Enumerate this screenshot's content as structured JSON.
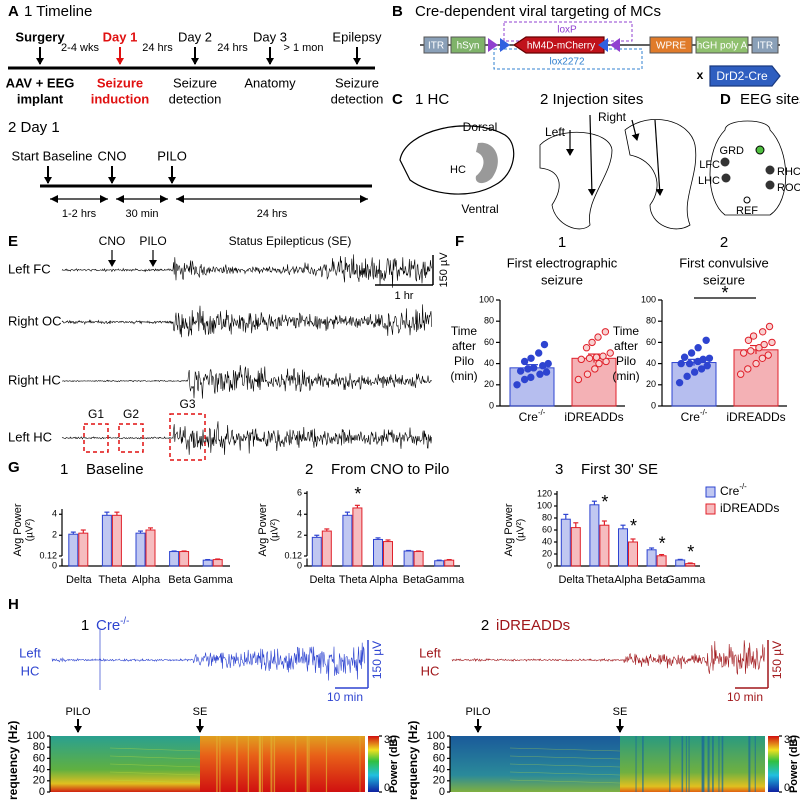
{
  "panel_a": {
    "letter": "A",
    "title": "1 Timeline",
    "events": [
      {
        "top": "Surgery",
        "bottom": [
          "AAV + EEG",
          "implant"
        ]
      },
      {
        "top": "Day 1",
        "bottom": [
          "Seizure",
          "induction"
        ]
      },
      {
        "top": "Day 2",
        "bottom": [
          "Seizure",
          "detection"
        ]
      },
      {
        "top": "Day 3",
        "bottom": [
          "Anatomy"
        ]
      },
      {
        "top": "Epilepsy",
        "bottom": [
          "Seizure",
          "detection"
        ]
      }
    ],
    "intervals": [
      "2-4 wks",
      "24 hrs",
      "24 hrs",
      "> 1 mon"
    ],
    "day1_title": "2 Day 1",
    "day1_events": [
      "Start Baseline",
      "CNO",
      "PILO"
    ],
    "day1_intervals": [
      "1-2 hrs",
      "30 min",
      "24 hrs"
    ]
  },
  "panel_b": {
    "letter": "B",
    "title": "Cre-dependent viral targeting of MCs",
    "elements": [
      "ITR",
      "hSyn",
      "hM4D-mCherry",
      "WPRE",
      "hGH poly A",
      "ITR"
    ],
    "loxp": "loxP",
    "lox2272": "lox2272",
    "cross": "x",
    "cre_line": "DrD2-Cre"
  },
  "panel_c": {
    "letter": "C",
    "title1": "1 HC",
    "dorsal": "Dorsal",
    "hc": "HC",
    "ventral": "Ventral",
    "title2": "2 Injection sites",
    "left": "Left",
    "right": "Right"
  },
  "panel_d": {
    "letter": "D",
    "title": "EEG sites",
    "sites": [
      "GRD",
      "LFC",
      "LHC",
      "RHC",
      "ROC",
      "REF"
    ]
  },
  "panel_e": {
    "letter": "E",
    "markers": [
      "CNO",
      "PILO"
    ],
    "se_label": "Status Epilepticus (SE)",
    "traces": [
      "Left FC",
      "Right OC",
      "Right HC",
      "Left HC"
    ],
    "amp_scale": "150 µV",
    "time_scale": "1 hr",
    "windows": [
      "G1",
      "G2",
      "G3"
    ]
  },
  "panel_f": {
    "letter": "F",
    "ylabel": [
      "Time",
      "after",
      "Pilo",
      "(min)"
    ],
    "ylim": [
      0,
      100
    ],
    "yticks": [
      0,
      20,
      40,
      60,
      80,
      100
    ],
    "categories": [
      "Cre",
      "iDREADDs"
    ],
    "category_sups": [
      "-/-",
      null
    ],
    "colors": [
      "#2e44d0",
      "#e0202a"
    ],
    "charts": [
      {
        "number": "1",
        "title": [
          "First electrographic",
          "seizure"
        ],
        "means": [
          36,
          45
        ],
        "errors": [
          3,
          4
        ],
        "points": [
          [
            20,
            25,
            27,
            30,
            32,
            33,
            35,
            36,
            38,
            40,
            42,
            45,
            50,
            58
          ],
          [
            25,
            30,
            35,
            40,
            42,
            44,
            45,
            46,
            47,
            50,
            55,
            60,
            65,
            70
          ]
        ],
        "significance": null
      },
      {
        "number": "2",
        "title": [
          "First convulsive",
          "seizure"
        ],
        "means": [
          41,
          53
        ],
        "errors": [
          3,
          4
        ],
        "points": [
          [
            22,
            28,
            32,
            35,
            38,
            40,
            40,
            42,
            44,
            45,
            46,
            50,
            55,
            62
          ],
          [
            30,
            35,
            40,
            45,
            48,
            50,
            52,
            55,
            58,
            60,
            62,
            66,
            70,
            75
          ]
        ],
        "significance": "*"
      }
    ]
  },
  "panel_g": {
    "letter": "G",
    "ylabel": [
      "Avg Power",
      "(µV²)"
    ],
    "categories": [
      "Delta",
      "Theta",
      "Alpha",
      "Beta",
      "Gamma"
    ],
    "legend": [
      {
        "name": "Cre",
        "sup": "-/-",
        "color": "#2e44d0"
      },
      {
        "name": "iDREADDs",
        "color": "#e0202a"
      }
    ],
    "charts": [
      {
        "number": "1",
        "title": "Baseline",
        "ylim": [
          0,
          4.5
        ],
        "y_break": 0.12,
        "yticks": [
          0,
          0.12,
          2,
          4
        ],
        "series": [
          {
            "values": [
              2.1,
              3.9,
              2.2,
              0.45,
              0.1
            ],
            "errors": [
              0.2,
              0.3,
              0.2,
              0.05,
              0.01
            ]
          },
          {
            "values": [
              2.2,
              3.9,
              2.5,
              0.45,
              0.11
            ],
            "errors": [
              0.3,
              0.3,
              0.2,
              0.05,
              0.01
            ]
          }
        ],
        "significance": [
          null,
          null,
          null,
          null,
          null
        ]
      },
      {
        "number": "2",
        "title": "From CNO to Pilo",
        "ylim": [
          0,
          6.2
        ],
        "y_break": 0.12,
        "yticks": [
          0,
          0.12,
          2,
          4,
          6
        ],
        "series": [
          {
            "values": [
              1.8,
              3.9,
              1.6,
              0.5,
              0.09
            ],
            "errors": [
              0.2,
              0.3,
              0.15,
              0.05,
              0.01
            ]
          },
          {
            "values": [
              2.4,
              4.6,
              1.4,
              0.45,
              0.1
            ],
            "errors": [
              0.2,
              0.25,
              0.15,
              0.05,
              0.01
            ]
          }
        ],
        "significance": [
          null,
          "*",
          null,
          null,
          null
        ]
      },
      {
        "number": "3",
        "title": "First 30' SE",
        "ylim": [
          0,
          125
        ],
        "y_break": null,
        "yticks": [
          0,
          20,
          40,
          60,
          80,
          100,
          120
        ],
        "series": [
          {
            "values": [
              78,
              102,
              62,
              27,
              10
            ],
            "errors": [
              8,
              6,
              6,
              3,
              1
            ]
          },
          {
            "values": [
              64,
              68,
              40,
              17,
              4
            ],
            "errors": [
              8,
              7,
              5,
              2,
              1
            ]
          }
        ],
        "significance": [
          null,
          "*",
          "*",
          "*",
          "*"
        ]
      }
    ]
  },
  "panel_h": {
    "letter": "H",
    "ylabel": "Frequency (Hz)",
    "ylim": [
      0,
      100
    ],
    "yticks": [
      0,
      20,
      40,
      60,
      80,
      100
    ],
    "colorbar_label": "Power (dB)",
    "clim": [
      0,
      30
    ],
    "cticks": [
      0,
      30
    ],
    "trace_label": [
      "Left",
      "HC"
    ],
    "amp_scale": "150 µV",
    "time_scale": "10 min",
    "markers": [
      "PILO",
      "SE"
    ],
    "panels": [
      {
        "number": "1",
        "name": "Cre",
        "sup": "-/-",
        "color": "#2e44d0"
      },
      {
        "number": "2",
        "name": "iDREADDs",
        "sup": null,
        "color": "#a0161a"
      }
    ]
  }
}
